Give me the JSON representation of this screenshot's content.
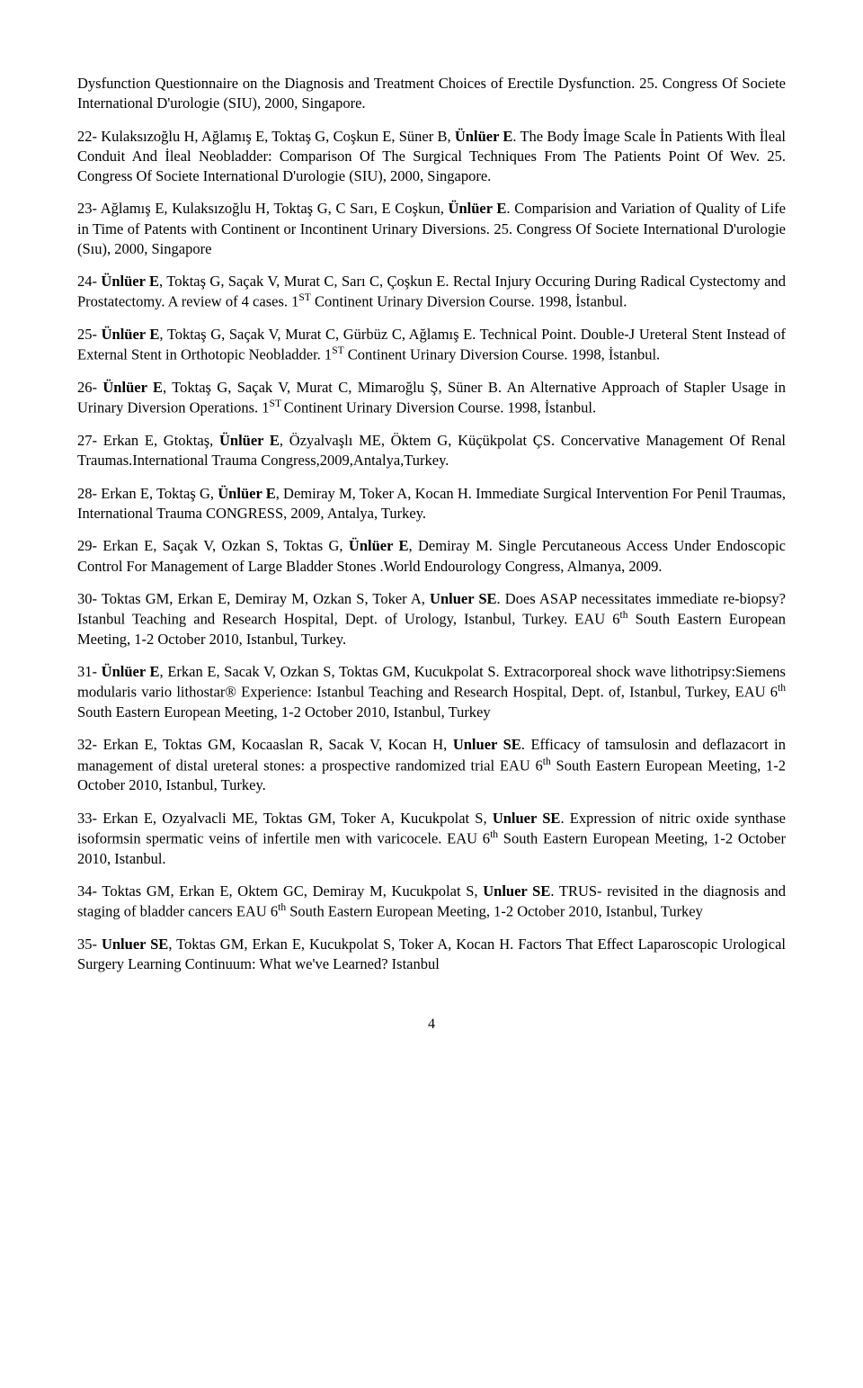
{
  "items": [
    {
      "num": "",
      "frags": [
        {
          "t": "Dysfunction Questionnaire on the Diagnosis and Treatment Choices of Erectile Dysfunction. 25. Congress Of Societe International D'urologie (SIU), 2000, Singapore.",
          "b": false
        }
      ]
    },
    {
      "num": "22- ",
      "frags": [
        {
          "t": "Kulaksızoğlu H, Ağlamış E, Toktaş G, Coşkun E, Süner B, ",
          "b": false
        },
        {
          "t": "Ünlüer E",
          "b": true
        },
        {
          "t": ". The Body İmage Scale İn Patients With İleal Conduit And İleal Neobladder: Comparison Of The Surgical Techniques From The Patients Point Of Wev. 25. Congress Of Societe International D'urologie (SIU), 2000, Singapore.",
          "b": false
        }
      ]
    },
    {
      "num": "23- ",
      "frags": [
        {
          "t": "Ağlamış E, Kulaksızoğlu H, Toktaş G, C Sarı, E Coşkun, ",
          "b": false
        },
        {
          "t": "Ünlüer E",
          "b": true
        },
        {
          "t": ". Comparision and Variation of Quality of Life in Time of Patents with Continent or Incontinent Urinary Diversions. 25. Congress Of Societe International D'urologie (Sıu), 2000, Singapore",
          "b": false
        }
      ]
    },
    {
      "num": "24- ",
      "frags": [
        {
          "t": "Ünlüer E",
          "b": true
        },
        {
          "t": ", Toktaş G, Saçak V, Murat C, Sarı C, Çoşkun E. Rectal Injury Occuring During Radical Cystectomy and Prostatectomy. A review of 4 cases. 1",
          "b": false
        },
        {
          "t": "ST",
          "sup": true
        },
        {
          "t": " Continent Urinary Diversion Course. 1998, İstanbul.",
          "b": false
        }
      ]
    },
    {
      "num": "25- ",
      "frags": [
        {
          "t": "Ünlüer E",
          "b": true
        },
        {
          "t": ", Toktaş G, Saçak V, Murat C, Gürbüz C, Ağlamış E. Technical Point. Double-J Ureteral Stent Instead of External Stent in Orthotopic Neobladder. 1",
          "b": false
        },
        {
          "t": "ST",
          "sup": true
        },
        {
          "t": " Continent Urinary Diversion Course. 1998, İstanbul.",
          "b": false
        }
      ]
    },
    {
      "num": "26- ",
      "frags": [
        {
          "t": "Ünlüer E",
          "b": true
        },
        {
          "t": ", Toktaş G, Saçak V, Murat C, Mimaroğlu Ş, Süner B. An Alternative Approach of Stapler Usage in Urinary Diversion Operations. 1",
          "b": false
        },
        {
          "t": "ST ",
          "sup": true
        },
        {
          "t": "Continent Urinary Diversion Course. 1998, İstanbul.",
          "b": false
        }
      ]
    },
    {
      "num": "27- ",
      "frags": [
        {
          "t": "Erkan E,  Gtoktaş, ",
          "b": false
        },
        {
          "t": "Ünlüer  E",
          "b": true
        },
        {
          "t": ", Özyalvaşlı ME, Öktem G,  Küçükpolat ÇS. Concervative Management Of Renal Traumas.International Trauma Congress,2009,Antalya,Turkey.",
          "b": false
        }
      ]
    },
    {
      "num": "28- ",
      "frags": [
        {
          "t": "Erkan E, Toktaş G, ",
          "b": false
        },
        {
          "t": "Ünlüer  E",
          "b": true
        },
        {
          "t": ", Demiray M,  Toker A, Kocan H. Immediate Surgical Intervention For Penil Traumas, International Trauma CONGRESS, 2009, Antalya, Turkey.",
          "b": false
        }
      ]
    },
    {
      "num": "29- ",
      "frags": [
        {
          "t": "Erkan E, Saçak V,  Ozkan S, Toktas G,  ",
          "b": false
        },
        {
          "t": "Ünlüer  E",
          "b": true
        },
        {
          "t": ", Demiray M. Single Percutaneous Access Under  Endoscopic Control For Management of Large Bladder Stones .World Endourology Congress, Almanya, 2009.",
          "b": false
        }
      ]
    },
    {
      "num": "30- ",
      "frags": [
        {
          "t": "Toktas GM, Erkan E, Demiray M, Ozkan S, Toker A, ",
          "b": false
        },
        {
          "t": "Unluer SE",
          "b": true
        },
        {
          "t": ". Does ASAP necessitates immediate re-biopsy? Istanbul Teaching and Research Hospital, Dept. of Urology, Istanbul, Turkey. EAU 6",
          "b": false
        },
        {
          "t": "th",
          "sup": true
        },
        {
          "t": " South Eastern European Meeting,  1-2 October 2010, Istanbul, Turkey.",
          "b": false
        }
      ]
    },
    {
      "num": "31- ",
      "frags": [
        {
          "t": "Ünlüer  E",
          "b": true
        },
        {
          "t": ", Erkan E, Sacak V, Ozkan S, Toktas GM, Kucukpolat S. Extracorporeal shock wave lithotripsy:Siemens modularis vario lithostar® Experience: Istanbul Teaching and Research Hospital, Dept. of, Istanbul, Turkey, EAU 6",
          "b": false
        },
        {
          "t": "th",
          "sup": true
        },
        {
          "t": " South Eastern European Meeting, 1-2 October 2010, Istanbul, Turkey",
          "b": false
        }
      ]
    },
    {
      "num": "32- ",
      "frags": [
        {
          "t": "Erkan E, Toktas GM, Kocaaslan R, Sacak V, Kocan H, ",
          "b": false
        },
        {
          "t": "Unluer SE",
          "b": true
        },
        {
          "t": ". Efficacy of tamsulosin and deflazacort in management of distal ureteral stones: a prospective randomized trial EAU 6",
          "b": false
        },
        {
          "t": "th",
          "sup": true
        },
        {
          "t": " South Eastern European Meeting,  1-2 October 2010, Istanbul, Turkey.",
          "b": false
        }
      ]
    },
    {
      "num": "33- ",
      "frags": [
        {
          "t": "Erkan E, Ozyalvacli ME, Toktas GM, Toker A, Kucukpolat S, ",
          "b": false
        },
        {
          "t": "Unluer SE",
          "b": true
        },
        {
          "t": ". Expression of nitric oxide synthase isoformsin spermatic veins of infertile men with varicocele. EAU 6",
          "b": false
        },
        {
          "t": "th",
          "sup": true
        },
        {
          "t": " South Eastern European Meeting,  1-2 October 2010, Istanbul.",
          "b": false
        }
      ]
    },
    {
      "num": "34- ",
      "frags": [
        {
          "t": "Toktas GM, Erkan E, Oktem GC, Demiray M, Kucukpolat S, ",
          "b": false
        },
        {
          "t": "Unluer SE",
          "b": true
        },
        {
          "t": ". TRUS- revisited in the diagnosis and staging of bladder cancers EAU 6",
          "b": false
        },
        {
          "t": "th",
          "sup": true
        },
        {
          "t": " South Eastern European Meeting, 1-2 October 2010, Istanbul, Turkey",
          "b": false
        }
      ]
    },
    {
      "num": "35- ",
      "frags": [
        {
          "t": "Unluer SE",
          "b": true
        },
        {
          "t": ", Toktas GM, Erkan E, Kucukpolat S, Toker A, Kocan H. Factors That Effect Laparoscopic Urological Surgery Learning Continuum: What we've Learned? Istanbul",
          "b": false
        }
      ]
    }
  ],
  "page_number": "4"
}
